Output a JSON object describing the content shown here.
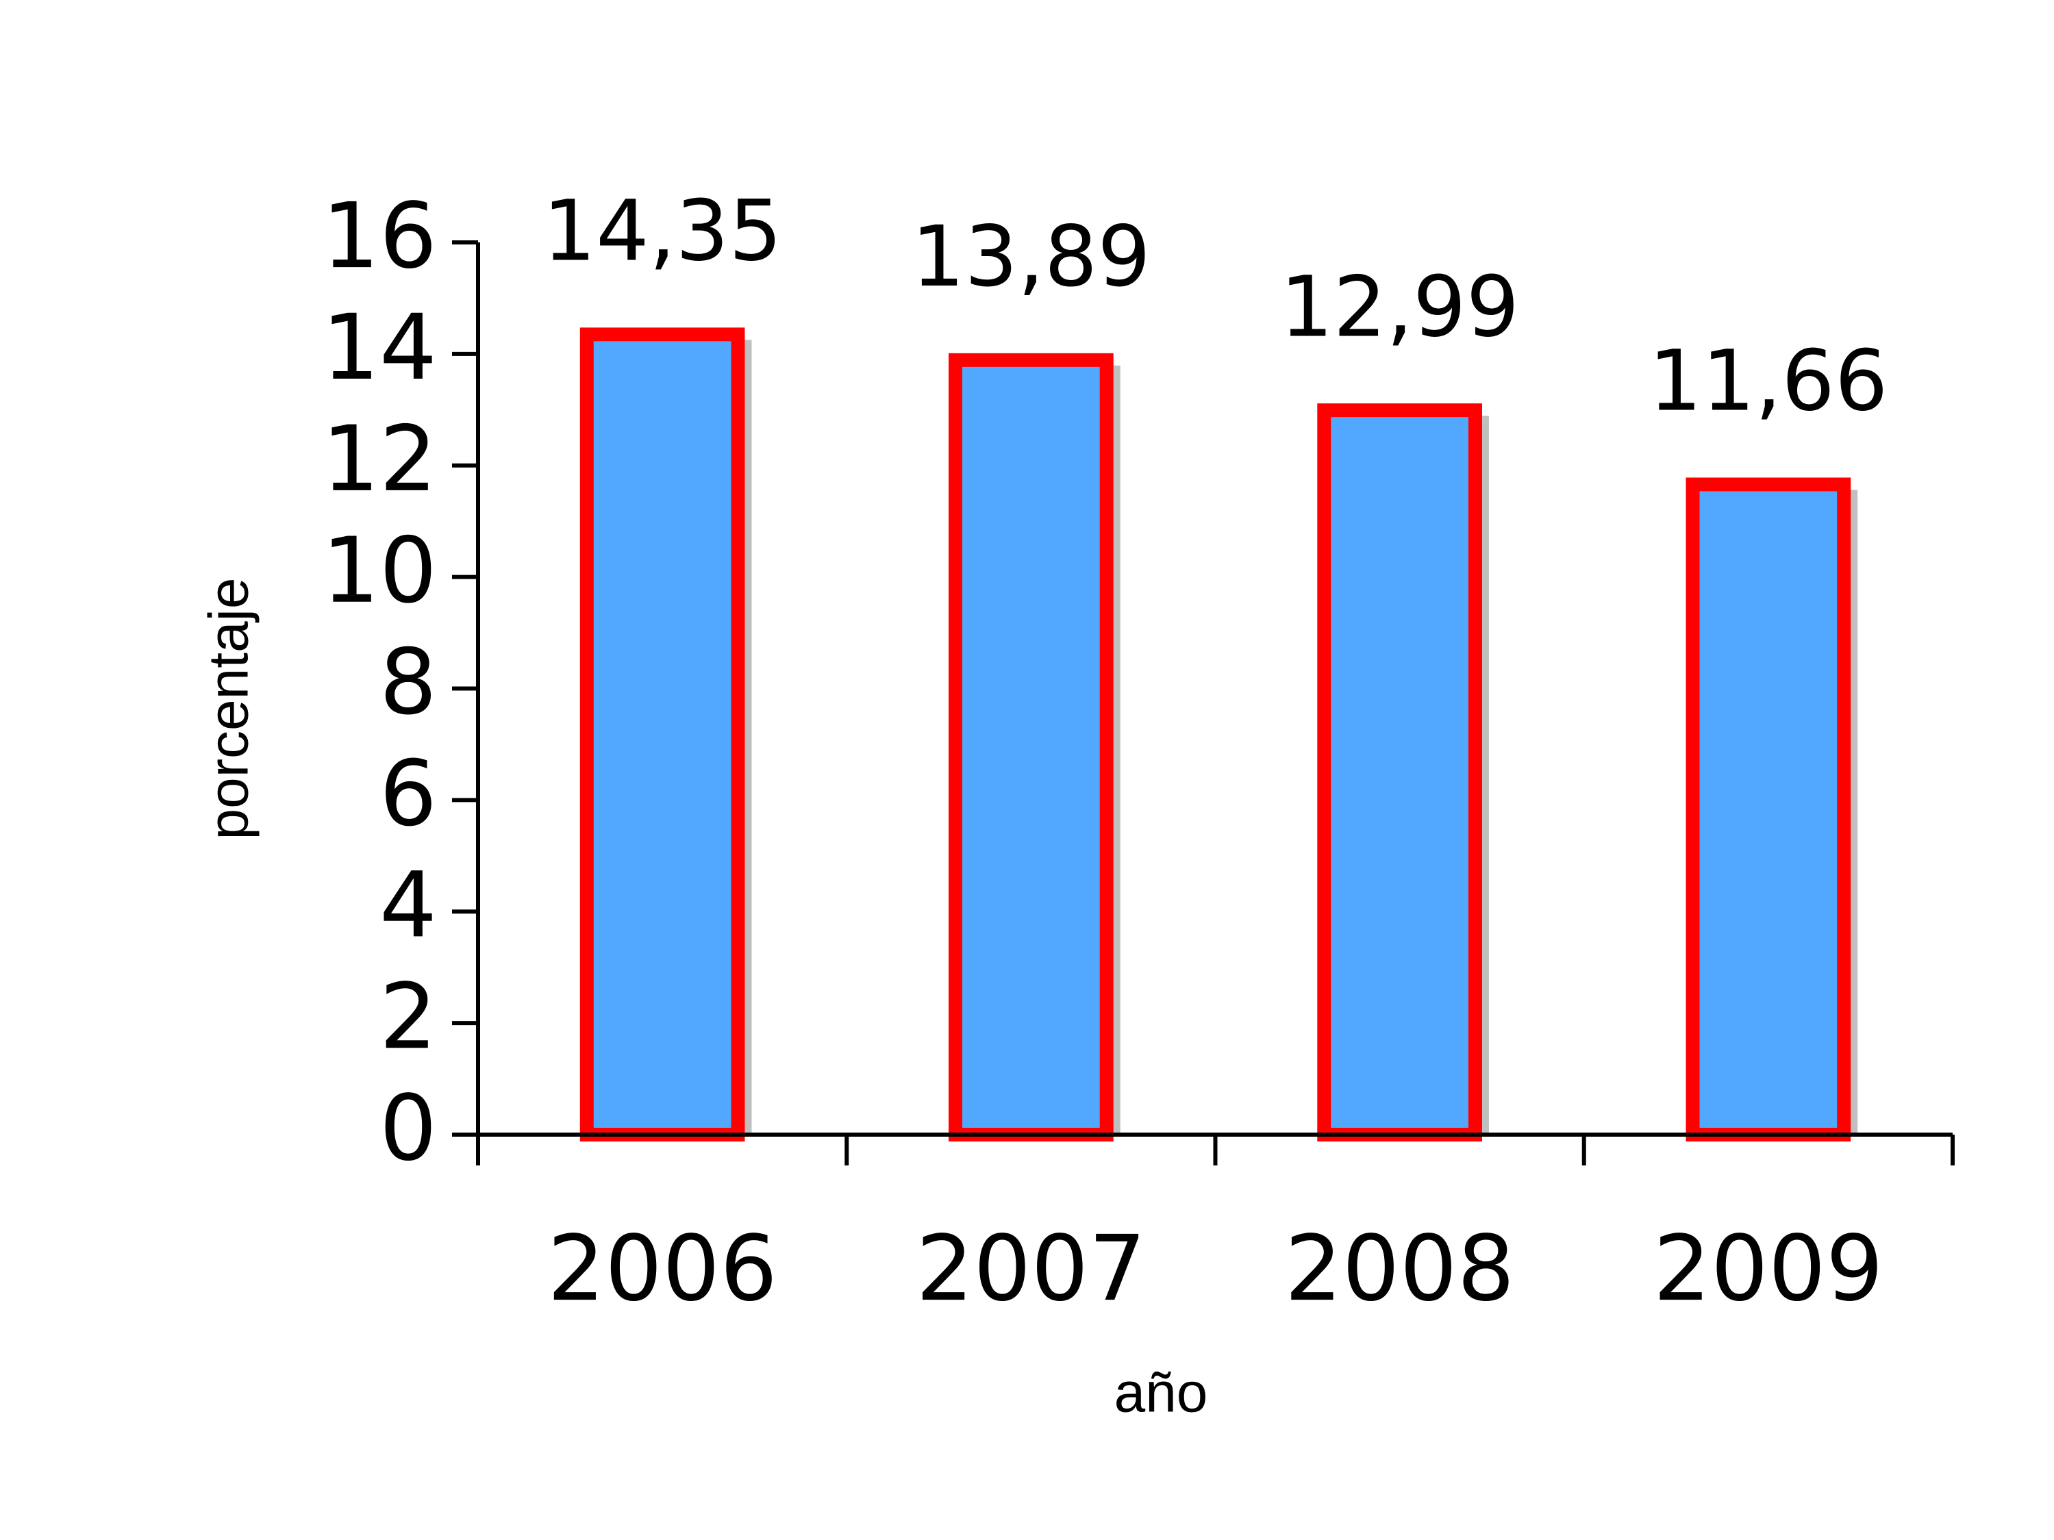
{
  "chart_data": {
    "type": "bar",
    "x_label": "año",
    "y_label": "porcentaje",
    "categories": [
      "2006",
      "2007",
      "2008",
      "2009"
    ],
    "values": [
      14.35,
      13.89,
      12.99,
      11.66
    ],
    "value_labels": [
      "14,35",
      "13,89",
      "12,99",
      "11,66"
    ],
    "color": "#52a8ff",
    "edge_color": "#ff0000",
    "ylim": [
      0,
      16
    ],
    "yticks": [
      0,
      2,
      4,
      6,
      8,
      10,
      12,
      14,
      16
    ]
  }
}
